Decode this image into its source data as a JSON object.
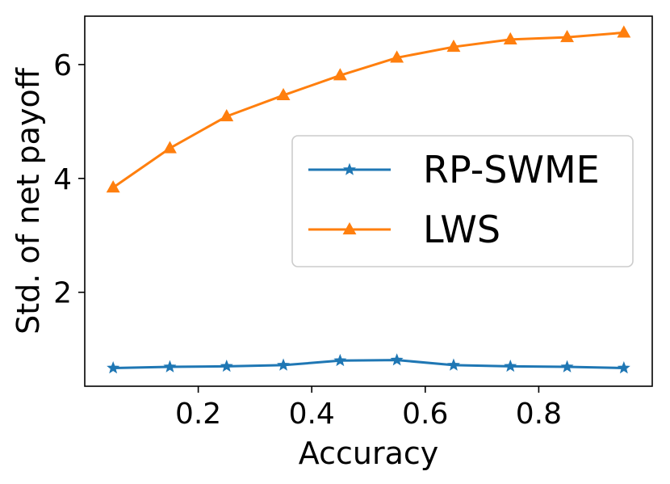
{
  "chart_data": {
    "type": "line",
    "xlabel": "Accuracy",
    "ylabel": "Std. of net payoff",
    "x": [
      0.05,
      0.15,
      0.25,
      0.35,
      0.45,
      0.55,
      0.65,
      0.75,
      0.85,
      0.95
    ],
    "xlim": [
      0.0,
      1.0
    ],
    "ylim": [
      0.35,
      6.85
    ],
    "xticks": [
      0.2,
      0.4,
      0.6,
      0.8
    ],
    "xtick_labels": [
      "0.2",
      "0.4",
      "0.6",
      "0.8"
    ],
    "yticks": [
      2,
      4,
      6
    ],
    "ytick_labels": [
      "2",
      "4",
      "6"
    ],
    "grid": false,
    "legend_position": "center-right",
    "series": [
      {
        "name": "RP-SWME",
        "marker": "star",
        "color": "#1f77b4",
        "values": [
          0.67,
          0.69,
          0.7,
          0.72,
          0.8,
          0.81,
          0.72,
          0.7,
          0.69,
          0.67
        ]
      },
      {
        "name": "LWS",
        "marker": "triangle",
        "color": "#ff7f0e",
        "values": [
          3.84,
          4.53,
          5.09,
          5.46,
          5.81,
          6.12,
          6.31,
          6.44,
          6.48,
          6.56
        ]
      }
    ]
  }
}
